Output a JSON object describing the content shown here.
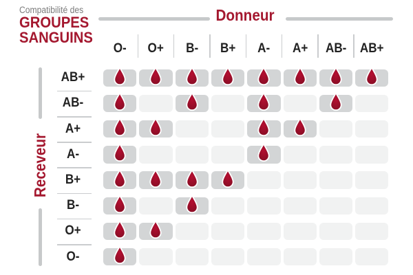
{
  "title": {
    "eyebrow": "Compatibilité des",
    "line1": "GROUPES",
    "line2": "SANGUINS"
  },
  "axes": {
    "donor": "Donneur",
    "receiver": "Receveur"
  },
  "donors": [
    "O-",
    "O+",
    "B-",
    "B+",
    "A-",
    "A+",
    "AB-",
    "AB+"
  ],
  "receivers": [
    "AB+",
    "AB-",
    "A+",
    "A-",
    "B+",
    "B-",
    "O+",
    "O-"
  ],
  "compatibility": [
    [
      1,
      1,
      1,
      1,
      1,
      1,
      1,
      1
    ],
    [
      1,
      0,
      1,
      0,
      1,
      0,
      1,
      0
    ],
    [
      1,
      1,
      0,
      0,
      1,
      1,
      0,
      0
    ],
    [
      1,
      0,
      0,
      0,
      1,
      0,
      0,
      0
    ],
    [
      1,
      1,
      1,
      1,
      0,
      0,
      0,
      0
    ],
    [
      1,
      0,
      1,
      0,
      0,
      0,
      0,
      0
    ],
    [
      1,
      1,
      0,
      0,
      0,
      0,
      0,
      0
    ],
    [
      1,
      0,
      0,
      0,
      0,
      0,
      0,
      0
    ]
  ],
  "icon_legend": {
    "blood-drop-icon": "compatible donation"
  },
  "colors": {
    "accent_red": "#a4182f",
    "drop_red_light": "#b50f31",
    "drop_red_dark": "#850d24",
    "drop_stroke": "#ffffff",
    "cell_filled": "#d3d5d6",
    "cell_empty": "#f1f2f2",
    "divider": "#caccce",
    "axis_line": "#c7c9ca",
    "label_text": "#222222",
    "eyebrow_text": "#7b7b7b"
  },
  "chart_data": {
    "type": "heatmap",
    "title": "Compatibilité des GROUPES SANGUINS",
    "x_axis_label": "Donneur",
    "y_axis_label": "Receveur",
    "x_categories": [
      "O-",
      "O+",
      "B-",
      "B+",
      "A-",
      "A+",
      "AB-",
      "AB+"
    ],
    "y_categories": [
      "AB+",
      "AB-",
      "A+",
      "A-",
      "B+",
      "B-",
      "O+",
      "O-"
    ],
    "values": [
      [
        1,
        1,
        1,
        1,
        1,
        1,
        1,
        1
      ],
      [
        1,
        0,
        1,
        0,
        1,
        0,
        1,
        0
      ],
      [
        1,
        1,
        0,
        0,
        1,
        1,
        0,
        0
      ],
      [
        1,
        0,
        0,
        0,
        1,
        0,
        0,
        0
      ],
      [
        1,
        1,
        1,
        1,
        0,
        0,
        0,
        0
      ],
      [
        1,
        0,
        1,
        0,
        0,
        0,
        0,
        0
      ],
      [
        1,
        1,
        0,
        0,
        0,
        0,
        0,
        0
      ],
      [
        1,
        0,
        0,
        0,
        0,
        0,
        0,
        0
      ]
    ],
    "value_encoding": "1 = blood drop shown (compatible), 0 = empty cell (incompatible)",
    "grid": false,
    "legend_position": "none"
  }
}
